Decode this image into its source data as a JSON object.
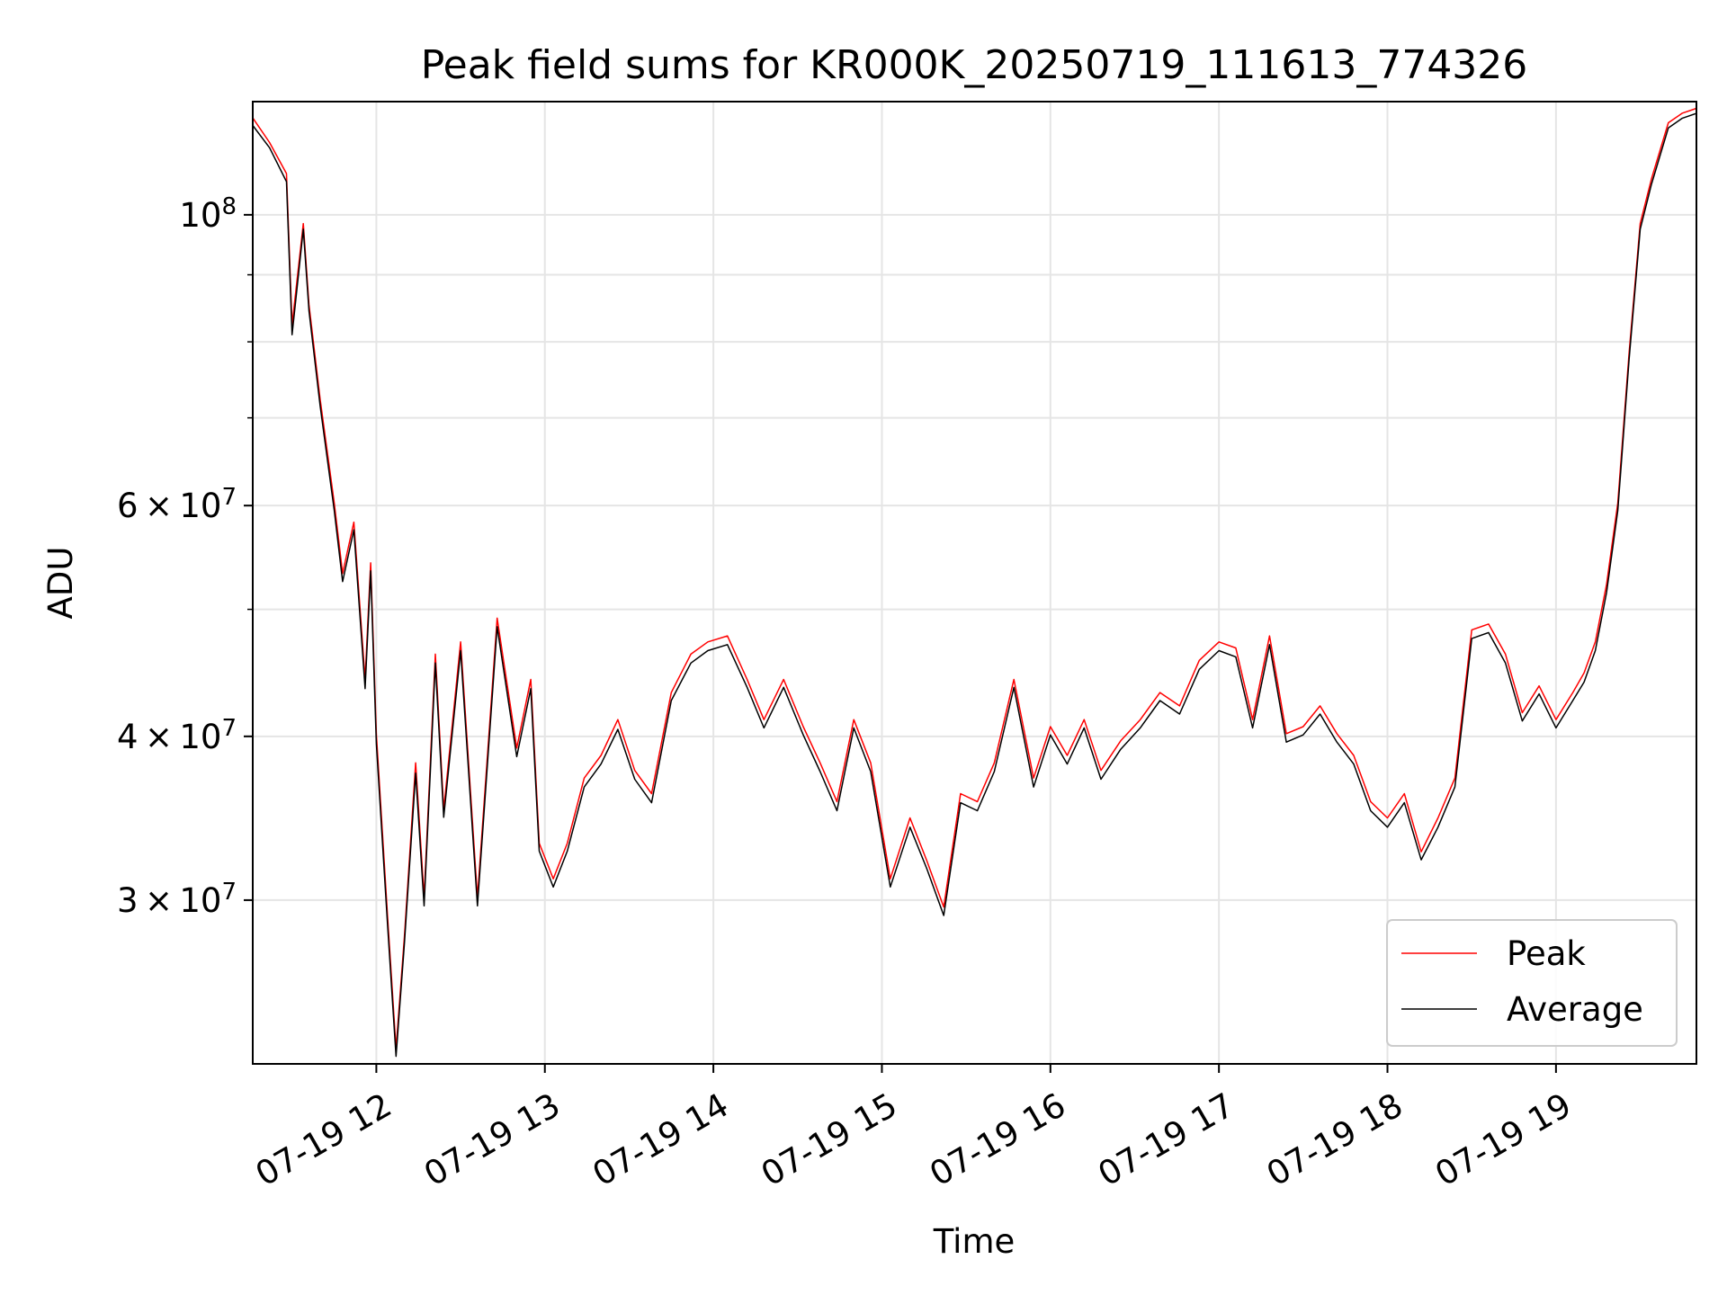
{
  "chart_data": {
    "type": "line",
    "title": "Peak field sums for KR000K_20250719_111613_774326",
    "xlabel": "Time",
    "ylabel": "ADU",
    "yscale": "log",
    "ylim": [
      22500000,
      122000000
    ],
    "xlim": [
      "2025-07-19 11:16",
      "2025-07-19 19:50"
    ],
    "grid": true,
    "legend_position": "lower right",
    "x_ticks": [
      {
        "value": "2025-07-19 12:00",
        "label": "07-19 12"
      },
      {
        "value": "2025-07-19 13:00",
        "label": "07-19 13"
      },
      {
        "value": "2025-07-19 14:00",
        "label": "07-19 14"
      },
      {
        "value": "2025-07-19 15:00",
        "label": "07-19 15"
      },
      {
        "value": "2025-07-19 16:00",
        "label": "07-19 16"
      },
      {
        "value": "2025-07-19 17:00",
        "label": "07-19 17"
      },
      {
        "value": "2025-07-19 18:00",
        "label": "07-19 18"
      },
      {
        "value": "2025-07-19 19:00",
        "label": "07-19 19"
      }
    ],
    "y_ticks": [
      {
        "value": 30000000,
        "base": "3",
        "times": "×",
        "exp_base": "10",
        "exp": "7"
      },
      {
        "value": 40000000,
        "base": "4",
        "times": "×",
        "exp_base": "10",
        "exp": "7"
      },
      {
        "value": 60000000,
        "base": "6",
        "times": "×",
        "exp_base": "10",
        "exp": "7"
      },
      {
        "value": 100000000,
        "base": "",
        "times": "",
        "exp_base": "10",
        "exp": "8"
      }
    ],
    "y_minor_ticks": [
      50000000,
      70000000,
      80000000,
      90000000
    ],
    "x": [
      "2025-07-19 11:16",
      "2025-07-19 11:22",
      "2025-07-19 11:28",
      "2025-07-19 11:30",
      "2025-07-19 11:34",
      "2025-07-19 11:36",
      "2025-07-19 11:40",
      "2025-07-19 11:45",
      "2025-07-19 11:48",
      "2025-07-19 11:52",
      "2025-07-19 11:56",
      "2025-07-19 11:58",
      "2025-07-19 12:00",
      "2025-07-19 12:04",
      "2025-07-19 12:07",
      "2025-07-19 12:10",
      "2025-07-19 12:14",
      "2025-07-19 12:17",
      "2025-07-19 12:21",
      "2025-07-19 12:24",
      "2025-07-19 12:30",
      "2025-07-19 12:36",
      "2025-07-19 12:43",
      "2025-07-19 12:50",
      "2025-07-19 12:55",
      "2025-07-19 12:58",
      "2025-07-19 13:03",
      "2025-07-19 13:08",
      "2025-07-19 13:14",
      "2025-07-19 13:20",
      "2025-07-19 13:26",
      "2025-07-19 13:32",
      "2025-07-19 13:38",
      "2025-07-19 13:45",
      "2025-07-19 13:52",
      "2025-07-19 13:58",
      "2025-07-19 14:05",
      "2025-07-19 14:12",
      "2025-07-19 14:18",
      "2025-07-19 14:25",
      "2025-07-19 14:32",
      "2025-07-19 14:38",
      "2025-07-19 14:44",
      "2025-07-19 14:50",
      "2025-07-19 14:56",
      "2025-07-19 15:03",
      "2025-07-19 15:10",
      "2025-07-19 15:16",
      "2025-07-19 15:22",
      "2025-07-19 15:28",
      "2025-07-19 15:34",
      "2025-07-19 15:40",
      "2025-07-19 15:47",
      "2025-07-19 15:54",
      "2025-07-19 16:00",
      "2025-07-19 16:06",
      "2025-07-19 16:12",
      "2025-07-19 16:18",
      "2025-07-19 16:25",
      "2025-07-19 16:32",
      "2025-07-19 16:39",
      "2025-07-19 16:46",
      "2025-07-19 16:53",
      "2025-07-19 17:00",
      "2025-07-19 17:06",
      "2025-07-19 17:12",
      "2025-07-19 17:18",
      "2025-07-19 17:24",
      "2025-07-19 17:30",
      "2025-07-19 17:36",
      "2025-07-19 17:42",
      "2025-07-19 17:48",
      "2025-07-19 17:54",
      "2025-07-19 18:00",
      "2025-07-19 18:06",
      "2025-07-19 18:12",
      "2025-07-19 18:18",
      "2025-07-19 18:24",
      "2025-07-19 18:30",
      "2025-07-19 18:36",
      "2025-07-19 18:42",
      "2025-07-19 18:48",
      "2025-07-19 18:54",
      "2025-07-19 19:00",
      "2025-07-19 19:06",
      "2025-07-19 19:10",
      "2025-07-19 19:14",
      "2025-07-19 19:18",
      "2025-07-19 19:22",
      "2025-07-19 19:26",
      "2025-07-19 19:30",
      "2025-07-19 19:34",
      "2025-07-19 19:40",
      "2025-07-19 19:45",
      "2025-07-19 19:50"
    ],
    "series": [
      {
        "name": "Peak",
        "color": "#ff0000",
        "values": [
          118000000,
          113000000,
          107000000,
          82000000,
          98000000,
          85000000,
          72000000,
          60000000,
          53000000,
          58000000,
          44000000,
          54000000,
          40000000,
          29000000,
          23000000,
          28000000,
          38000000,
          30000000,
          46000000,
          35000000,
          47000000,
          30000000,
          49000000,
          39000000,
          44000000,
          33000000,
          31000000,
          33000000,
          37000000,
          38500000,
          41000000,
          37500000,
          36000000,
          43000000,
          46000000,
          47000000,
          47500000,
          44000000,
          41000000,
          44000000,
          40500000,
          38000000,
          35500000,
          41000000,
          38000000,
          31000000,
          34500000,
          32000000,
          29500000,
          36000000,
          35500000,
          38000000,
          44000000,
          37000000,
          40500000,
          38500000,
          41000000,
          37500000,
          39500000,
          41000000,
          43000000,
          42000000,
          45500000,
          47000000,
          46500000,
          41000000,
          47500000,
          40000000,
          40500000,
          42000000,
          40000000,
          38500000,
          35500000,
          34500000,
          36000000,
          32500000,
          34500000,
          37000000,
          48000000,
          48500000,
          46000000,
          41500000,
          43500000,
          41000000,
          43000000,
          44500000,
          47000000,
          52000000,
          60000000,
          78000000,
          98000000,
          106000000,
          117000000,
          119000000,
          120000000
        ]
      },
      {
        "name": "Average",
        "color": "#000000",
        "values": [
          117000000,
          112500000,
          106000000,
          81000000,
          97500000,
          84500000,
          71500000,
          59500000,
          52500000,
          57500000,
          43500000,
          53500000,
          39500000,
          28700000,
          22800000,
          27800000,
          37500000,
          29700000,
          45500000,
          34700000,
          46500000,
          29700000,
          48500000,
          38600000,
          43500000,
          32700000,
          30700000,
          32700000,
          36600000,
          38100000,
          40500000,
          37100000,
          35600000,
          42600000,
          45500000,
          46500000,
          47000000,
          43600000,
          40600000,
          43600000,
          40100000,
          37600000,
          35100000,
          40600000,
          37600000,
          30700000,
          34100000,
          31700000,
          29200000,
          35600000,
          35100000,
          37600000,
          43600000,
          36600000,
          40100000,
          38100000,
          40600000,
          37100000,
          39100000,
          40600000,
          42600000,
          41600000,
          45000000,
          46500000,
          46000000,
          40600000,
          47000000,
          39600000,
          40100000,
          41600000,
          39600000,
          38100000,
          35100000,
          34100000,
          35600000,
          32200000,
          34100000,
          36600000,
          47500000,
          48000000,
          45500000,
          41100000,
          43100000,
          40600000,
          42600000,
          44000000,
          46500000,
          51500000,
          59500000,
          77500000,
          97500000,
          105500000,
          116500000,
          118500000,
          119500000
        ]
      }
    ]
  }
}
